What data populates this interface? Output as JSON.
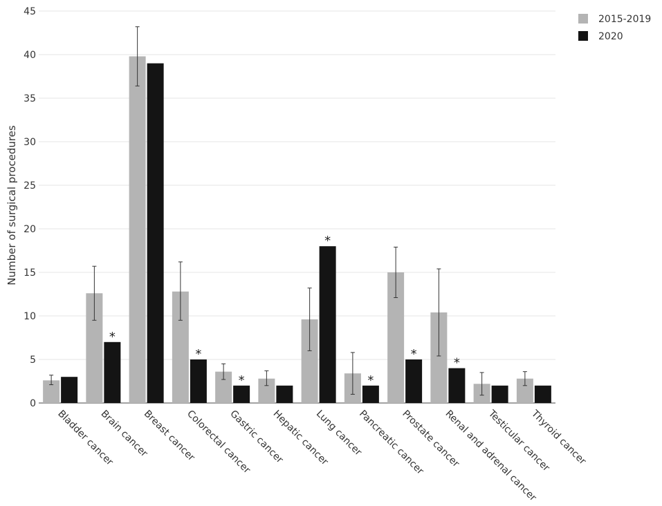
{
  "chart_data": {
    "type": "bar",
    "ylabel": "Number of surgical procedures",
    "xlabel": "",
    "ylim": [
      0,
      45
    ],
    "yticks": [
      0,
      5,
      10,
      15,
      20,
      25,
      30,
      35,
      40,
      45
    ],
    "grid": true,
    "legend_position": "top-right",
    "categories": [
      "Bladder cancer",
      "Brain cancer",
      "Breast cancer",
      "Colorectal cancer",
      "Gastric cancer",
      "Hepatic cancer",
      "Lung cancer",
      "Pancreatic cancer",
      "Prostate cancer",
      "Renal and adrenal cancer",
      "Testicular cancer",
      "Thyroid cancer"
    ],
    "series": [
      {
        "name": "2015-2019",
        "color": "#b4b4b4",
        "values": [
          2.6,
          12.6,
          39.8,
          12.8,
          3.6,
          2.8,
          9.6,
          3.4,
          15.0,
          10.4,
          2.2,
          2.8
        ],
        "error_low": [
          2.1,
          9.5,
          36.4,
          9.5,
          2.7,
          2.0,
          6.0,
          1.0,
          12.1,
          5.4,
          0.9,
          2.0
        ],
        "error_high": [
          3.2,
          15.7,
          43.2,
          16.2,
          4.5,
          3.7,
          13.2,
          5.8,
          17.9,
          15.4,
          3.5,
          3.6
        ]
      },
      {
        "name": "2020",
        "color": "#141414",
        "values": [
          3,
          7,
          39,
          5,
          2,
          2,
          18,
          2,
          5,
          4,
          2,
          2
        ],
        "significant": [
          false,
          true,
          false,
          true,
          true,
          false,
          true,
          true,
          true,
          true,
          false,
          false
        ]
      }
    ],
    "significance_marker": "*"
  }
}
